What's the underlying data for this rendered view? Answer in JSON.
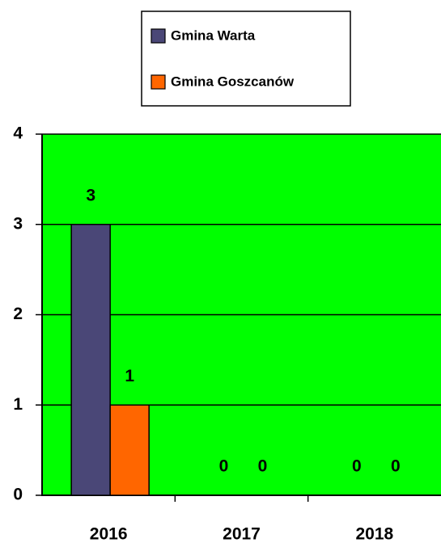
{
  "chart_data": {
    "type": "bar",
    "categories": [
      "2016",
      "2017",
      "2018"
    ],
    "series": [
      {
        "name": "Gmina Warta",
        "color": "#4a4777",
        "values": [
          3,
          0,
          0
        ]
      },
      {
        "name": "Gmina Goszcanów",
        "color": "#ff6600",
        "values": [
          1,
          0,
          0
        ]
      }
    ],
    "ylim": [
      0,
      4
    ],
    "yticks": [
      0,
      1,
      2,
      3,
      4
    ],
    "grid": true,
    "plot_background": "#00ff00",
    "legend": "top"
  }
}
